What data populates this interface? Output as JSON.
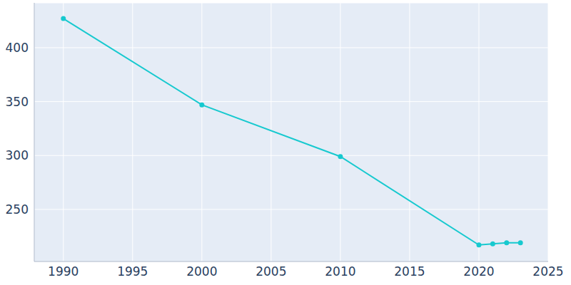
{
  "chart_data": {
    "type": "line",
    "x": [
      1990,
      2000,
      2010,
      2020,
      2021,
      2022,
      2023
    ],
    "values": [
      427,
      347,
      299,
      217,
      218,
      219,
      219
    ],
    "color": "#17c9cf",
    "marker": "circle",
    "xlim": [
      1987.9,
      2025
    ],
    "xticks": [
      1990,
      1995,
      2000,
      2005,
      2010,
      2015,
      2020,
      2025
    ],
    "ylim": [
      201.7,
      441.6
    ],
    "yticks": [
      250,
      300,
      350,
      400
    ],
    "grid": true
  }
}
